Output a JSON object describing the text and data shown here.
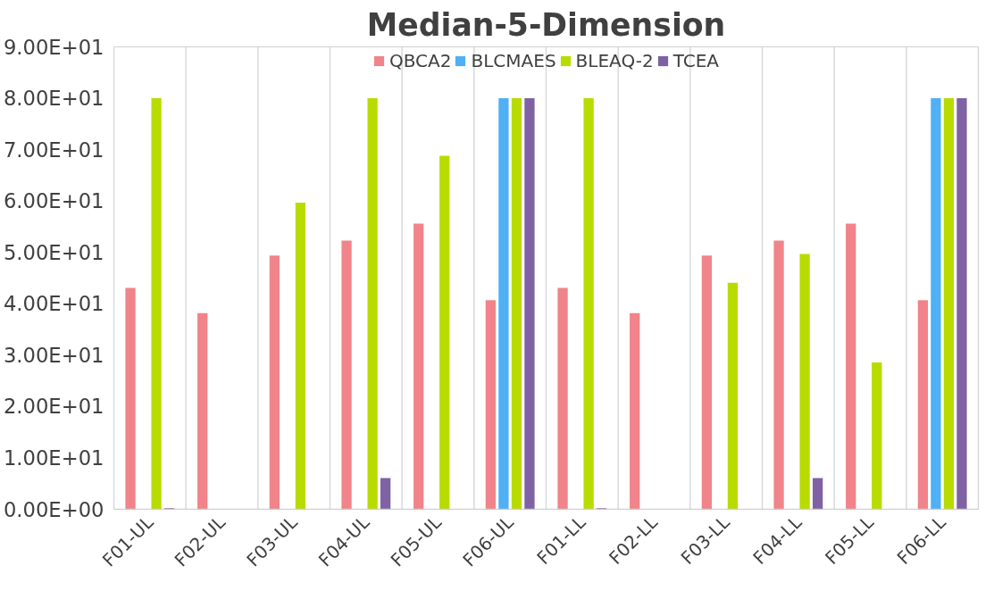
{
  "chart_data": {
    "type": "bar",
    "title": "Median-5-Dimension",
    "categories": [
      "F01-UL",
      "F02-UL",
      "F03-UL",
      "F04-UL",
      "F05-UL",
      "F06-UL",
      "F01-LL",
      "F02-LL",
      "F03-LL",
      "F04-LL",
      "F05-LL",
      "F06-LL"
    ],
    "series": [
      {
        "name": "QBCA2",
        "color": "#f0848a",
        "values": [
          43.1,
          38.2,
          49.4,
          52.3,
          55.6,
          40.7,
          43.1,
          38.2,
          49.4,
          52.3,
          55.6,
          40.7
        ]
      },
      {
        "name": "BLCMAES",
        "color": "#4fb0f5",
        "values": [
          null,
          null,
          null,
          null,
          null,
          80,
          null,
          null,
          null,
          null,
          null,
          80
        ]
      },
      {
        "name": "BLEAQ-2",
        "color": "#b8dc00",
        "values": [
          80,
          null,
          59.7,
          80,
          68.8,
          80,
          80,
          null,
          44.1,
          49.7,
          28.6,
          80
        ]
      },
      {
        "name": "TCEA",
        "color": "#7e62a3",
        "values": [
          0.2,
          null,
          null,
          6.1,
          null,
          80,
          0.2,
          null,
          null,
          6.1,
          null,
          80
        ]
      }
    ],
    "ylim": [
      0,
      90
    ],
    "yticks": [
      {
        "value": 0,
        "label": "0.00E+00"
      },
      {
        "value": 10,
        "label": "1.00E+01"
      },
      {
        "value": 20,
        "label": "2.00E+01"
      },
      {
        "value": 30,
        "label": "3.00E+01"
      },
      {
        "value": 40,
        "label": "4.00E+01"
      },
      {
        "value": 50,
        "label": "5.00E+01"
      },
      {
        "value": 60,
        "label": "6.00E+01"
      },
      {
        "value": 70,
        "label": "7.00E+01"
      },
      {
        "value": 80,
        "label": "8.00E+01"
      },
      {
        "value": 90,
        "label": "9.00E+01"
      }
    ],
    "grid": "x",
    "legend": "top"
  }
}
